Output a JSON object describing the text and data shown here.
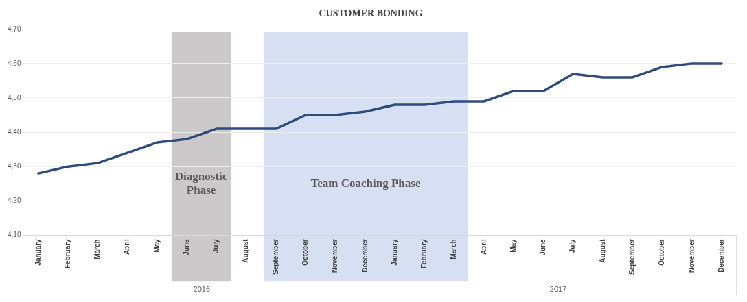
{
  "chart_data": {
    "type": "line",
    "title": "CUSTOMER BONDING",
    "x": [
      "2016-01",
      "2016-02",
      "2016-03",
      "2016-04",
      "2016-05",
      "2016-06",
      "2016-07",
      "2016-08",
      "2016-09",
      "2016-10",
      "2016-11",
      "2016-12",
      "2017-01",
      "2017-02",
      "2017-03",
      "2017-04",
      "2017-05",
      "2017-06",
      "2017-07",
      "2017-08",
      "2017-09",
      "2017-10",
      "2017-11",
      "2017-12"
    ],
    "series": [
      {
        "color": "#2f4b7c",
        "values": [
          4.28,
          4.3,
          4.31,
          4.34,
          4.37,
          4.38,
          4.41,
          4.41,
          4.41,
          4.45,
          4.45,
          4.46,
          4.48,
          4.48,
          4.49,
          4.49,
          4.52,
          4.52,
          4.57,
          4.56,
          4.56,
          4.59,
          4.6,
          4.6
        ]
      }
    ],
    "xlim": [
      "2015-12-16",
      "2017-12-16"
    ],
    "xticks": [
      {
        "value": "2016-01",
        "label": "January"
      },
      {
        "value": "2016-02",
        "label": "February"
      },
      {
        "value": "2016-03",
        "label": "March"
      },
      {
        "value": "2016-04",
        "label": "April"
      },
      {
        "value": "2016-05",
        "label": "May"
      },
      {
        "value": "2016-06",
        "label": "June"
      },
      {
        "value": "2016-07",
        "label": "July"
      },
      {
        "value": "2016-08",
        "label": "August"
      },
      {
        "value": "2016-09",
        "label": "September"
      },
      {
        "value": "2016-10",
        "label": "October"
      },
      {
        "value": "2016-11",
        "label": "November"
      },
      {
        "value": "2016-12",
        "label": "December"
      },
      {
        "value": "2017-01",
        "label": "January"
      },
      {
        "value": "2017-02",
        "label": "February"
      },
      {
        "value": "2017-03",
        "label": "March"
      },
      {
        "value": "2017-04",
        "label": "April"
      },
      {
        "value": "2017-05",
        "label": "May"
      },
      {
        "value": "2017-06",
        "label": "June"
      },
      {
        "value": "2017-07",
        "label": "July"
      },
      {
        "value": "2017-08",
        "label": "August"
      },
      {
        "value": "2017-09",
        "label": "September"
      },
      {
        "value": "2017-10",
        "label": "October"
      },
      {
        "value": "2017-11",
        "label": "November"
      },
      {
        "value": "2017-12",
        "label": "December"
      }
    ],
    "ylim": [
      4.1,
      4.7
    ],
    "yticks": [
      {
        "value": 4.1,
        "label": "4,10"
      },
      {
        "value": 4.2,
        "label": "4,20"
      },
      {
        "value": 4.3,
        "label": "4,30"
      },
      {
        "value": 4.4,
        "label": "4,40"
      },
      {
        "value": 4.5,
        "label": "4,50"
      },
      {
        "value": 4.6,
        "label": "4,60"
      },
      {
        "value": 4.7,
        "label": "4,70"
      }
    ],
    "bands": [
      {
        "axis": "x",
        "from": "2016-05-16",
        "to": "2016-07-16",
        "label": "Diagnostic Phase",
        "color": "#cbc9ca"
      },
      {
        "axis": "x",
        "from": "2016-08-19",
        "to": "2017-03-15",
        "label": "Team Coaching Phase",
        "color": "#d6e0f2"
      }
    ],
    "annotations": [
      "2016",
      "2017"
    ],
    "grid": "y",
    "legend": false,
    "marker": "none",
    "line_style": "solid"
  }
}
